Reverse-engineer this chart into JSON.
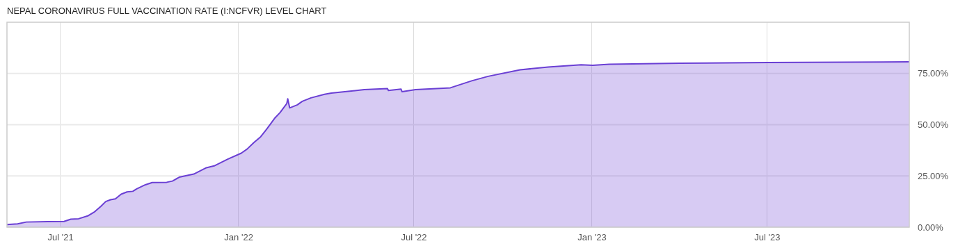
{
  "chart_data": {
    "type": "area",
    "title": "NEPAL CORONAVIRUS FULL VACCINATION RATE (I:NCFVR) LEVEL CHART",
    "x": [
      "2021-05-07",
      "2021-05-18",
      "2021-05-27",
      "2021-06-18",
      "2021-07-05",
      "2021-07-12",
      "2021-07-20",
      "2021-07-30",
      "2021-08-05",
      "2021-08-12",
      "2021-08-17",
      "2021-08-22",
      "2021-08-27",
      "2021-09-02",
      "2021-09-08",
      "2021-09-14",
      "2021-09-18",
      "2021-09-27",
      "2021-10-04",
      "2021-10-19",
      "2021-10-25",
      "2021-11-01",
      "2021-11-16",
      "2021-11-29",
      "2021-12-07",
      "2021-12-21",
      "2022-01-04",
      "2022-01-10",
      "2022-01-17",
      "2022-01-24",
      "2022-01-30",
      "2022-02-08",
      "2022-02-13",
      "2022-02-20",
      "2022-02-21",
      "2022-02-23",
      "2022-03-03",
      "2022-03-08",
      "2022-03-17",
      "2022-03-31",
      "2022-04-07",
      "2022-05-11",
      "2022-06-04",
      "2022-06-05",
      "2022-06-18",
      "2022-06-19",
      "2022-07-03",
      "2022-08-08",
      "2022-08-30",
      "2022-09-16",
      "2022-10-19",
      "2022-11-17",
      "2022-12-21",
      "2023-01-02",
      "2023-01-19",
      "2023-04-02",
      "2023-07-02",
      "2023-11-25"
    ],
    "series": [
      {
        "color": "#6a3fd4",
        "values": [
          1.3,
          1.6,
          2.5,
          2.7,
          2.8,
          3.9,
          4.1,
          5.6,
          7.3,
          10.2,
          12.5,
          13.4,
          13.8,
          16.1,
          17.2,
          17.5,
          18.7,
          20.7,
          21.8,
          21.9,
          22.5,
          24.4,
          25.9,
          29.0,
          29.9,
          33.2,
          36.1,
          38.1,
          41.3,
          44.1,
          47.7,
          53.4,
          55.9,
          60.3,
          62.6,
          58.2,
          59.7,
          61.4,
          63.1,
          64.8,
          65.4,
          67.1,
          67.6,
          66.7,
          67.4,
          66.1,
          67.1,
          68.0,
          71.4,
          73.6,
          76.8,
          78.1,
          79.2,
          79.0,
          79.5,
          80.0,
          80.3,
          80.7
        ]
      }
    ],
    "xlim": [
      "2021-05-07",
      "2023-11-25"
    ],
    "xticks": [
      {
        "value": "2021-07-01",
        "label": "Jul '21"
      },
      {
        "value": "2022-01-01",
        "label": "Jan '22"
      },
      {
        "value": "2022-07-01",
        "label": "Jul '22"
      },
      {
        "value": "2023-01-01",
        "label": "Jan '23"
      },
      {
        "value": "2023-07-01",
        "label": "Jul '23"
      }
    ],
    "ylim": [
      0,
      100
    ],
    "yticks": [
      {
        "value": 0,
        "label": "0.00%"
      },
      {
        "value": 25,
        "label": "25.00%"
      },
      {
        "value": 50,
        "label": "50.00%"
      },
      {
        "value": 75,
        "label": "75.00%"
      }
    ],
    "grid": true
  }
}
